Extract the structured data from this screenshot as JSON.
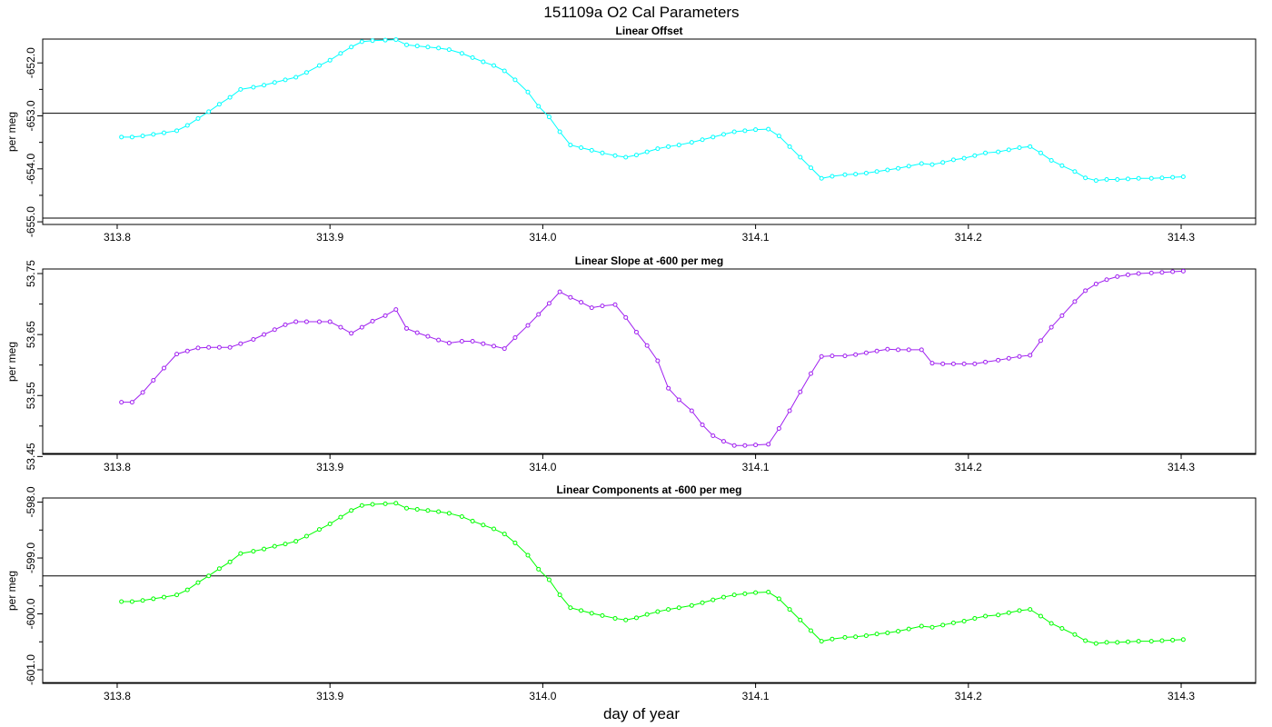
{
  "figure": {
    "title": "151109a   O2 Cal Parameters",
    "xlabel": "day of year"
  },
  "chart_data": [
    {
      "type": "line",
      "title": "Linear Offset",
      "ylabel": "per meg",
      "color": "#00ffff",
      "xlim": [
        313.765,
        314.335
      ],
      "ylim": [
        -655.05,
        -651.55
      ],
      "xticks": [
        "313.8",
        "313.9",
        "314.0",
        "314.1",
        "314.2",
        "314.3"
      ],
      "yticks": [
        "-652.0",
        "-653.0",
        "-654.0",
        "-655.0"
      ],
      "ref_lines": [
        -652.95,
        -654.93
      ],
      "x": [
        313.802,
        313.807,
        313.812,
        313.817,
        313.822,
        313.828,
        313.833,
        313.838,
        313.843,
        313.848,
        313.853,
        313.858,
        313.864,
        313.869,
        313.874,
        313.879,
        313.884,
        313.889,
        313.895,
        313.9,
        313.905,
        313.91,
        313.915,
        313.92,
        313.926,
        313.931,
        313.936,
        313.941,
        313.946,
        313.951,
        313.956,
        313.962,
        313.967,
        313.972,
        313.977,
        313.982,
        313.987,
        313.993,
        313.998,
        314.003,
        314.008,
        314.013,
        314.018,
        314.023,
        314.028,
        314.034,
        314.039,
        314.044,
        314.049,
        314.054,
        314.059,
        314.064,
        314.07,
        314.075,
        314.08,
        314.085,
        314.09,
        314.095,
        314.1,
        314.106,
        314.111,
        314.116,
        314.121,
        314.126,
        314.131,
        314.136,
        314.142,
        314.147,
        314.152,
        314.157,
        314.162,
        314.167,
        314.172,
        314.178,
        314.183,
        314.188,
        314.193,
        314.198,
        314.203,
        314.208,
        314.214,
        314.219,
        314.224,
        314.229,
        314.234,
        314.239,
        314.244,
        314.25,
        314.255,
        314.26,
        314.265,
        314.27,
        314.275,
        314.28,
        314.286,
        314.291,
        314.296,
        314.301
      ],
      "values": [
        -653.4,
        -653.4,
        -653.38,
        -653.35,
        -653.32,
        -653.28,
        -653.18,
        -653.05,
        -652.92,
        -652.78,
        -652.65,
        -652.5,
        -652.46,
        -652.42,
        -652.37,
        -652.32,
        -652.27,
        -652.18,
        -652.05,
        -651.95,
        -651.82,
        -651.7,
        -651.6,
        -651.58,
        -651.57,
        -651.56,
        -651.66,
        -651.68,
        -651.7,
        -651.72,
        -651.75,
        -651.82,
        -651.9,
        -651.98,
        -652.05,
        -652.15,
        -652.32,
        -652.55,
        -652.82,
        -653.02,
        -653.3,
        -653.55,
        -653.6,
        -653.65,
        -653.7,
        -653.75,
        -653.78,
        -653.74,
        -653.68,
        -653.62,
        -653.58,
        -653.55,
        -653.5,
        -653.45,
        -653.4,
        -653.35,
        -653.3,
        -653.28,
        -653.26,
        -653.25,
        -653.38,
        -653.58,
        -653.78,
        -653.98,
        -654.18,
        -654.14,
        -654.11,
        -654.1,
        -654.08,
        -654.05,
        -654.02,
        -653.99,
        -653.95,
        -653.9,
        -653.92,
        -653.88,
        -653.83,
        -653.8,
        -653.75,
        -653.7,
        -653.68,
        -653.64,
        -653.6,
        -653.58,
        -653.7,
        -653.84,
        -653.94,
        -654.05,
        -654.17,
        -654.22,
        -654.2,
        -654.2,
        -654.19,
        -654.18,
        -654.18,
        -654.17,
        -654.16,
        -654.15
      ]
    },
    {
      "type": "line",
      "title": "Linear Slope at -600 per meg",
      "ylabel": "per meg",
      "color": "#a020f0",
      "xlim": [
        313.765,
        314.335
      ],
      "ylim": [
        53.4535,
        53.7575
      ],
      "xticks": [
        "313.8",
        "313.9",
        "314.0",
        "314.1",
        "314.2",
        "314.3"
      ],
      "yticks": [
        "53.45",
        "53.55",
        "53.65",
        "53.75"
      ],
      "ref_lines": [
        53.455
      ],
      "x": [
        313.802,
        313.807,
        313.812,
        313.817,
        313.822,
        313.828,
        313.833,
        313.838,
        313.843,
        313.848,
        313.853,
        313.858,
        313.864,
        313.869,
        313.874,
        313.879,
        313.884,
        313.889,
        313.895,
        313.9,
        313.905,
        313.91,
        313.915,
        313.92,
        313.926,
        313.931,
        313.936,
        313.941,
        313.946,
        313.951,
        313.956,
        313.962,
        313.967,
        313.972,
        313.977,
        313.982,
        313.987,
        313.993,
        313.998,
        314.003,
        314.008,
        314.013,
        314.018,
        314.023,
        314.028,
        314.034,
        314.039,
        314.044,
        314.049,
        314.054,
        314.059,
        314.064,
        314.07,
        314.075,
        314.08,
        314.085,
        314.09,
        314.095,
        314.1,
        314.106,
        314.111,
        314.116,
        314.121,
        314.126,
        314.131,
        314.136,
        314.142,
        314.147,
        314.152,
        314.157,
        314.162,
        314.167,
        314.172,
        314.178,
        314.183,
        314.188,
        314.193,
        314.198,
        314.203,
        314.208,
        314.214,
        314.219,
        314.224,
        314.229,
        314.234,
        314.239,
        314.244,
        314.25,
        314.255,
        314.26,
        314.265,
        314.27,
        314.275,
        314.28,
        314.286,
        314.291,
        314.296,
        314.301
      ],
      "values": [
        53.539,
        53.539,
        53.555,
        53.575,
        53.595,
        53.618,
        53.623,
        53.628,
        53.629,
        53.629,
        53.629,
        53.635,
        53.642,
        53.65,
        53.658,
        53.666,
        53.671,
        53.671,
        53.671,
        53.671,
        53.662,
        53.652,
        53.662,
        53.672,
        53.681,
        53.691,
        53.66,
        53.653,
        53.647,
        53.641,
        53.636,
        53.639,
        53.639,
        53.635,
        53.631,
        53.627,
        53.645,
        53.665,
        53.683,
        53.701,
        53.72,
        53.711,
        53.703,
        53.694,
        53.697,
        53.699,
        53.678,
        53.654,
        53.632,
        53.607,
        53.562,
        53.543,
        53.525,
        53.502,
        53.484,
        53.475,
        53.468,
        53.468,
        53.469,
        53.47,
        53.496,
        53.525,
        53.556,
        53.586,
        53.614,
        53.615,
        53.615,
        53.617,
        53.62,
        53.623,
        53.626,
        53.625,
        53.625,
        53.625,
        53.603,
        53.602,
        53.602,
        53.602,
        53.602,
        53.605,
        53.608,
        53.611,
        53.614,
        53.616,
        53.64,
        53.662,
        53.681,
        53.704,
        53.722,
        53.733,
        53.74,
        53.745,
        53.748,
        53.75,
        53.751,
        53.752,
        53.753,
        53.754
      ]
    },
    {
      "type": "line",
      "title": "Linear Components at -600 per meg",
      "ylabel": "per meg",
      "color": "#00ff00",
      "xlim": [
        313.765,
        314.335
      ],
      "ylim": [
        -601.2435,
        -597.9265
      ],
      "xticks": [
        "313.8",
        "313.9",
        "314.0",
        "314.1",
        "314.2",
        "314.3"
      ],
      "yticks": [
        "-598.0",
        "-599.0",
        "-600.0",
        "-601.0"
      ],
      "ref_lines": [
        -599.32,
        -601.23
      ],
      "x": [
        313.802,
        313.807,
        313.812,
        313.817,
        313.822,
        313.828,
        313.833,
        313.838,
        313.843,
        313.848,
        313.853,
        313.858,
        313.864,
        313.869,
        313.874,
        313.879,
        313.884,
        313.889,
        313.895,
        313.9,
        313.905,
        313.91,
        313.915,
        313.92,
        313.926,
        313.931,
        313.936,
        313.941,
        313.946,
        313.951,
        313.956,
        313.962,
        313.967,
        313.972,
        313.977,
        313.982,
        313.987,
        313.993,
        313.998,
        314.003,
        314.008,
        314.013,
        314.018,
        314.023,
        314.028,
        314.034,
        314.039,
        314.044,
        314.049,
        314.054,
        314.059,
        314.064,
        314.07,
        314.075,
        314.08,
        314.085,
        314.09,
        314.095,
        314.1,
        314.106,
        314.111,
        314.116,
        314.121,
        314.126,
        314.131,
        314.136,
        314.142,
        314.147,
        314.152,
        314.157,
        314.162,
        314.167,
        314.172,
        314.178,
        314.183,
        314.188,
        314.193,
        314.198,
        314.203,
        314.208,
        314.214,
        314.219,
        314.224,
        314.229,
        314.234,
        314.239,
        314.244,
        314.25,
        314.255,
        314.26,
        314.265,
        314.27,
        314.275,
        314.28,
        314.286,
        314.291,
        314.296,
        314.301
      ],
      "values": [
        -599.78,
        -599.78,
        -599.76,
        -599.73,
        -599.7,
        -599.66,
        -599.57,
        -599.44,
        -599.32,
        -599.19,
        -599.07,
        -598.92,
        -598.88,
        -598.84,
        -598.79,
        -598.75,
        -598.7,
        -598.61,
        -598.49,
        -598.39,
        -598.27,
        -598.15,
        -598.06,
        -598.04,
        -598.03,
        -598.02,
        -598.11,
        -598.13,
        -598.15,
        -598.17,
        -598.2,
        -598.26,
        -598.34,
        -598.41,
        -598.48,
        -598.57,
        -598.73,
        -598.95,
        -599.2,
        -599.39,
        -599.66,
        -599.89,
        -599.94,
        -599.99,
        -600.03,
        -600.08,
        -600.11,
        -600.07,
        -600.01,
        -599.96,
        -599.92,
        -599.89,
        -599.85,
        -599.8,
        -599.75,
        -599.7,
        -599.66,
        -599.64,
        -599.62,
        -599.61,
        -599.73,
        -599.92,
        -600.11,
        -600.3,
        -600.49,
        -600.45,
        -600.42,
        -600.41,
        -600.39,
        -600.36,
        -600.34,
        -600.31,
        -600.27,
        -600.22,
        -600.24,
        -600.2,
        -600.16,
        -600.13,
        -600.08,
        -600.04,
        -600.02,
        -599.98,
        -599.94,
        -599.92,
        -600.04,
        -600.17,
        -600.26,
        -600.37,
        -600.48,
        -600.53,
        -600.51,
        -600.51,
        -600.5,
        -600.49,
        -600.49,
        -600.48,
        -600.47,
        -600.46
      ]
    }
  ]
}
